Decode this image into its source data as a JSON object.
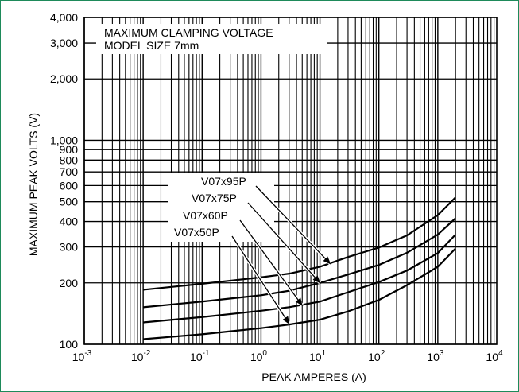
{
  "chart_data": {
    "type": "line",
    "title": "MAXIMUM CLAMPING VOLTAGE",
    "subtitle": "MODEL SIZE 7mm",
    "xlabel": "PEAK AMPERES (A)",
    "ylabel": "MAXIMUM PEAK VOLTS (V)",
    "x_scale": "log",
    "y_scale": "log",
    "xlim": [
      0.001,
      10000
    ],
    "ylim": [
      100,
      4000
    ],
    "grid": true,
    "x_ticks": [
      {
        "base": "10",
        "exp": "-3",
        "value": 0.001
      },
      {
        "base": "10",
        "exp": "-2",
        "value": 0.01
      },
      {
        "base": "10",
        "exp": "-1",
        "value": 0.1
      },
      {
        "base": "10",
        "exp": "0",
        "value": 1
      },
      {
        "base": "10",
        "exp": "1",
        "value": 10
      },
      {
        "base": "10",
        "exp": "2",
        "value": 100
      },
      {
        "base": "10",
        "exp": "3",
        "value": 1000
      },
      {
        "base": "10",
        "exp": "4",
        "value": 10000
      }
    ],
    "y_ticks": [
      {
        "label": "100",
        "value": 100
      },
      {
        "label": "200",
        "value": 200
      },
      {
        "label": "300",
        "value": 300
      },
      {
        "label": "400",
        "value": 400
      },
      {
        "label": "500",
        "value": 500
      },
      {
        "label": "600",
        "value": 600
      },
      {
        "label": "700",
        "value": 700
      },
      {
        "label": "800",
        "value": 800
      },
      {
        "label": "900",
        "value": 900
      },
      {
        "label": "1,000",
        "value": 1000
      },
      {
        "label": "2,000",
        "value": 2000
      },
      {
        "label": "3,000",
        "value": 3000
      },
      {
        "label": "4,000",
        "value": 4000
      }
    ],
    "series": [
      {
        "name": "V07x95P",
        "x": [
          0.01,
          0.1,
          1,
          3,
          10,
          30,
          100,
          300,
          1000,
          2000
        ],
        "y": [
          185,
          198,
          213,
          222,
          240,
          268,
          298,
          342,
          430,
          525
        ],
        "pointer_x": 15,
        "pointer_y": 248
      },
      {
        "name": "V07x75P",
        "x": [
          0.01,
          0.1,
          1,
          3,
          10,
          30,
          100,
          300,
          1000,
          2000
        ],
        "y": [
          152,
          162,
          174,
          183,
          200,
          220,
          245,
          281,
          345,
          415
        ],
        "pointer_x": 10,
        "pointer_y": 200
      },
      {
        "name": "V07x60P",
        "x": [
          0.01,
          0.1,
          1,
          3,
          10,
          30,
          100,
          300,
          1000,
          2000
        ],
        "y": [
          128,
          136,
          146,
          152,
          162,
          180,
          202,
          230,
          280,
          345
        ],
        "pointer_x": 5,
        "pointer_y": 155
      },
      {
        "name": "V07x50P",
        "x": [
          0.01,
          0.1,
          1,
          3,
          10,
          30,
          100,
          300,
          1000,
          2000
        ],
        "y": [
          106,
          112,
          120,
          125,
          132,
          145,
          165,
          195,
          240,
          295
        ],
        "pointer_x": 3,
        "pointer_y": 126
      }
    ]
  }
}
